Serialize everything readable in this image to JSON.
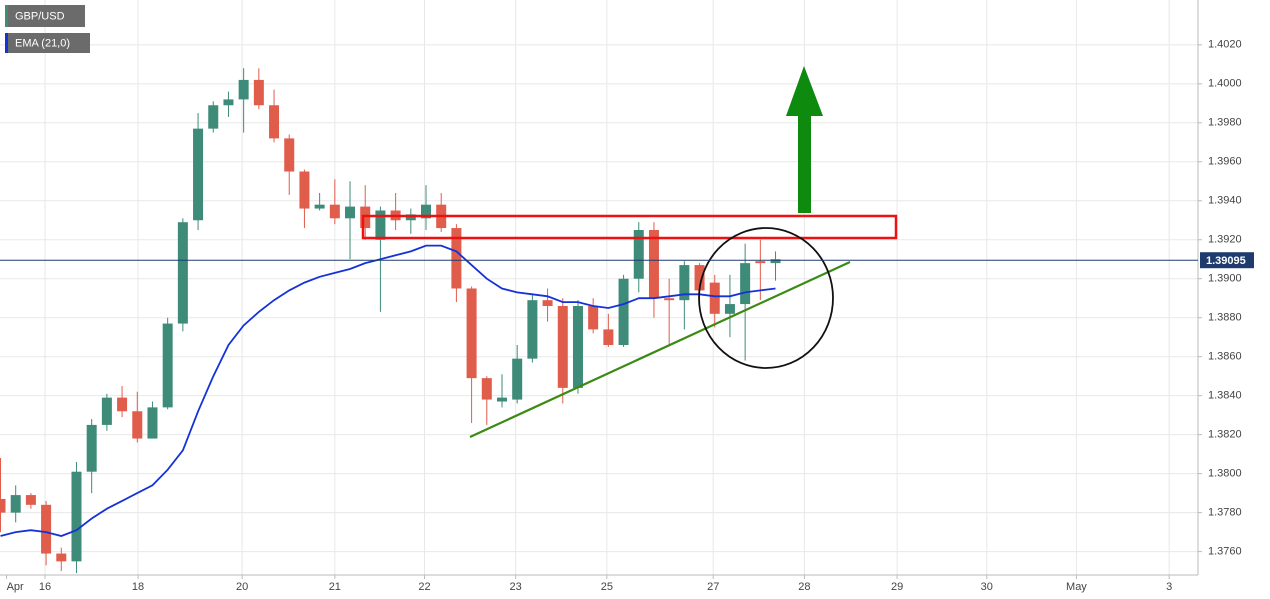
{
  "chart_data": {
    "type": "candlestick",
    "ylim": [
      1.3748,
      1.4043
    ],
    "yticks": [
      {
        "value": 1.376,
        "label": "1.3760"
      },
      {
        "value": 1.378,
        "label": "1.3780"
      },
      {
        "value": 1.38,
        "label": "1.3800"
      },
      {
        "value": 1.382,
        "label": "1.3820"
      },
      {
        "value": 1.384,
        "label": "1.3840"
      },
      {
        "value": 1.386,
        "label": "1.3860"
      },
      {
        "value": 1.388,
        "label": "1.3880"
      },
      {
        "value": 1.39,
        "label": "1.3900"
      },
      {
        "value": 1.392,
        "label": "1.3920"
      },
      {
        "value": 1.394,
        "label": "1.3940"
      },
      {
        "value": 1.396,
        "label": "1.3960"
      },
      {
        "value": 1.398,
        "label": "1.3980"
      },
      {
        "value": 1.4,
        "label": "1.4000"
      },
      {
        "value": 1.402,
        "label": "1.4020"
      }
    ],
    "xlim": [
      0,
      78.8
    ],
    "xticks": [
      {
        "value": 0.4,
        "label": "Apr"
      },
      {
        "value": 2.93,
        "label": "16"
      },
      {
        "value": 9.05,
        "label": "18"
      },
      {
        "value": 15.9,
        "label": "20"
      },
      {
        "value": 22,
        "label": "21"
      },
      {
        "value": 27.9,
        "label": "22"
      },
      {
        "value": 33.9,
        "label": "23"
      },
      {
        "value": 39.9,
        "label": "25"
      },
      {
        "value": 46.9,
        "label": "27"
      },
      {
        "value": 52.9,
        "label": "28"
      },
      {
        "value": 59,
        "label": "29"
      },
      {
        "value": 64.9,
        "label": "30"
      },
      {
        "value": 70.8,
        "label": "May"
      },
      {
        "value": 76.9,
        "label": "3"
      }
    ],
    "grid": true,
    "current_price": 1.39095,
    "series": [
      {
        "name": "GBP/USD",
        "up_color": "#3d8b78",
        "down_color": "#e05c4b",
        "open": [
          1.3787,
          1.378,
          1.3789,
          1.3784,
          1.3759,
          1.3755,
          1.3801,
          1.3825,
          1.3839,
          1.3832,
          1.3818,
          1.3834,
          1.3877,
          1.393,
          1.3977,
          1.3989,
          1.3992,
          1.4002,
          1.3989,
          1.3972,
          1.3955,
          1.3936,
          1.3938,
          1.3931,
          1.3937,
          1.392,
          1.3935,
          1.393,
          1.3931,
          1.3938,
          1.3926,
          1.3895,
          1.3849,
          1.3837,
          1.3838,
          1.3859,
          1.3889,
          1.3886,
          1.3844,
          1.3886,
          1.3874,
          1.3866,
          1.39,
          1.3925,
          1.389,
          1.3889,
          1.3907,
          1.3898,
          1.3882,
          1.3887,
          1.3909,
          1.3908
        ],
        "high": [
          1.3808,
          1.3794,
          1.379,
          1.3786,
          1.3762,
          1.3806,
          1.3828,
          1.3841,
          1.3845,
          1.3842,
          1.3837,
          1.388,
          1.3931,
          1.3985,
          1.3991,
          1.3996,
          1.4008,
          1.4008,
          1.3997,
          1.3974,
          1.3956,
          1.3944,
          1.3951,
          1.395,
          1.3948,
          1.3937,
          1.3944,
          1.3936,
          1.3948,
          1.3944,
          1.3928,
          1.3896,
          1.385,
          1.3851,
          1.3866,
          1.3892,
          1.3895,
          1.389,
          1.3889,
          1.389,
          1.3882,
          1.3902,
          1.3929,
          1.3929,
          1.39,
          1.3909,
          1.3908,
          1.3902,
          1.3902,
          1.3918,
          1.392,
          1.3914
        ],
        "low": [
          1.377,
          1.3775,
          1.3782,
          1.3753,
          1.375,
          1.3749,
          1.379,
          1.3822,
          1.3829,
          1.3816,
          1.3818,
          1.3833,
          1.3873,
          1.3925,
          1.3975,
          1.3983,
          1.3975,
          1.3987,
          1.397,
          1.3943,
          1.3926,
          1.3935,
          1.3928,
          1.391,
          1.392,
          1.3883,
          1.3925,
          1.3923,
          1.3925,
          1.3924,
          1.3888,
          1.3826,
          1.3825,
          1.3834,
          1.3836,
          1.3857,
          1.3878,
          1.3836,
          1.3841,
          1.3872,
          1.3865,
          1.3865,
          1.3893,
          1.388,
          1.3866,
          1.3874,
          1.3885,
          1.3875,
          1.387,
          1.3858,
          1.3889,
          1.3899
        ],
        "close": [
          1.378,
          1.3789,
          1.3784,
          1.3759,
          1.3755,
          1.3801,
          1.3825,
          1.3839,
          1.3832,
          1.3818,
          1.3834,
          1.3877,
          1.3929,
          1.3977,
          1.3989,
          1.3992,
          1.4002,
          1.3989,
          1.3972,
          1.3955,
          1.3936,
          1.3938,
          1.3931,
          1.3937,
          1.3926,
          1.3935,
          1.393,
          1.3933,
          1.3938,
          1.3926,
          1.3895,
          1.3849,
          1.3838,
          1.3839,
          1.3859,
          1.3889,
          1.3886,
          1.3844,
          1.3886,
          1.3874,
          1.3866,
          1.39,
          1.3925,
          1.389,
          1.3889,
          1.3907,
          1.3894,
          1.3882,
          1.3887,
          1.3908,
          1.3908,
          1.391
        ]
      },
      {
        "name": "EMA (21,0)",
        "color": "#1432d8",
        "values": [
          1.3768,
          1.377,
          1.3771,
          1.377,
          1.3768,
          1.3771,
          1.3777,
          1.3782,
          1.3786,
          1.379,
          1.3794,
          1.3802,
          1.3812,
          1.3832,
          1.385,
          1.3866,
          1.3876,
          1.3883,
          1.3889,
          1.3894,
          1.3898,
          1.3901,
          1.3903,
          1.3905,
          1.3908,
          1.391,
          1.3912,
          1.3914,
          1.3917,
          1.3917,
          1.3914,
          1.3907,
          1.39,
          1.3895,
          1.3893,
          1.3892,
          1.3891,
          1.3888,
          1.3888,
          1.3886,
          1.3885,
          1.3887,
          1.389,
          1.389,
          1.3891,
          1.3892,
          1.3892,
          1.3891,
          1.3891,
          1.3893,
          1.3894,
          1.3895
        ]
      }
    ]
  }
}
